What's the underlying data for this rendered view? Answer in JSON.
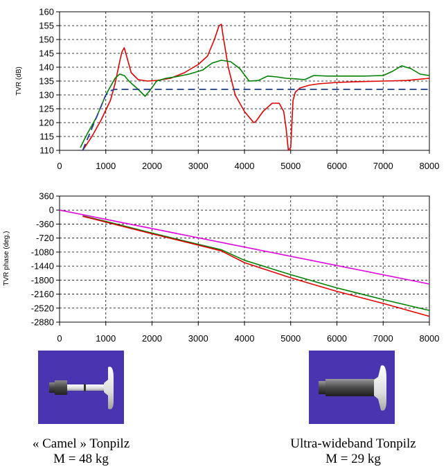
{
  "chart_data": [
    {
      "type": "line",
      "ylabel": "TVR (dB)",
      "xlim": [
        0,
        8000
      ],
      "ylim": [
        110,
        160
      ],
      "xticks": [
        0,
        1000,
        2000,
        3000,
        4000,
        5000,
        6000,
        7000,
        8000
      ],
      "xtick_labels": [
        "0",
        "1000",
        "2000",
        "3000",
        "4000",
        "5000",
        "6000",
        "7000",
        "8000"
      ],
      "yticks": [
        110,
        115,
        120,
        125,
        130,
        135,
        140,
        145,
        150,
        155,
        160
      ],
      "ytick_labels": [
        "110",
        "115",
        "120",
        "125",
        "130",
        "135",
        "140",
        "145",
        "150",
        "155",
        "160"
      ],
      "grid": true,
      "series": [
        {
          "color": "#e00000",
          "style": "solid",
          "x": [
            500,
            700,
            900,
            1100,
            1200,
            1300,
            1350,
            1400,
            1450,
            1550,
            1700,
            1900,
            2100,
            2400,
            2700,
            3000,
            3200,
            3350,
            3450,
            3500,
            3550,
            3650,
            3800,
            4000,
            4200,
            4250,
            4400,
            4600,
            4750,
            4850,
            4900,
            4950,
            5000,
            5050,
            5100,
            5200,
            5400,
            5600,
            6000,
            6500,
            7000,
            7500,
            8000
          ],
          "y": [
            110,
            115,
            121,
            128,
            134,
            142,
            145.5,
            147,
            144,
            138,
            135.5,
            135,
            135.2,
            136,
            138,
            141,
            144,
            150,
            155,
            155.5,
            150,
            140,
            130,
            124,
            120,
            120.5,
            124,
            127,
            127,
            124,
            118,
            110,
            111,
            128,
            131,
            132.5,
            133.5,
            134,
            134.5,
            134.8,
            135,
            135.2,
            136
          ]
        },
        {
          "color": "#008000",
          "style": "solid",
          "x": [
            450,
            600,
            800,
            1000,
            1200,
            1300,
            1400,
            1500,
            1700,
            1850,
            1950,
            2100,
            2300,
            2500,
            2800,
            3100,
            3300,
            3500,
            3700,
            3900,
            4100,
            4300,
            4500,
            4700,
            4900,
            5100,
            5300,
            5500,
            5800,
            6200,
            6600,
            7000,
            7200,
            7400,
            7600,
            7800,
            8000
          ],
          "y": [
            111,
            116,
            122,
            130,
            136,
            137.5,
            137,
            135,
            132,
            129.5,
            131.5,
            135,
            136,
            136.5,
            137.5,
            139,
            141.5,
            142.5,
            142,
            139.5,
            135,
            135.2,
            136.8,
            136.5,
            136,
            135.8,
            135.5,
            137,
            136.8,
            136.8,
            136.8,
            137,
            138.5,
            140.5,
            139.5,
            137.5,
            137
          ]
        },
        {
          "color": "#1f3c8f",
          "style": "dashed",
          "x": [
            500,
            1000,
            1100,
            1200,
            8000
          ],
          "y": [
            110,
            130,
            131.5,
            132,
            132
          ]
        }
      ]
    },
    {
      "type": "line",
      "ylabel": "TVR phase (deg.)",
      "xlim": [
        0,
        8000
      ],
      "ylim": [
        -2880,
        360
      ],
      "xticks": [
        0,
        1000,
        2000,
        3000,
        4000,
        5000,
        6000,
        7000,
        8000
      ],
      "xtick_labels": [
        "0",
        "1000",
        "2000",
        "3000",
        "4000",
        "5000",
        "6000",
        "7000",
        "8000"
      ],
      "yticks": [
        360,
        0,
        -360,
        -720,
        -1080,
        -1440,
        -1800,
        -2160,
        -2520,
        -2880
      ],
      "ytick_labels": [
        "360",
        "0",
        "-360",
        "-720",
        "-1080",
        "-1440",
        "-1800",
        "-2160",
        "-2520",
        "-2880"
      ],
      "grid": true,
      "series": [
        {
          "color": "#e000e0",
          "style": "solid",
          "x": [
            0,
            8000
          ],
          "y": [
            0,
            -1900
          ]
        },
        {
          "color": "#008000",
          "style": "solid",
          "x": [
            500,
            1000,
            2000,
            3000,
            3500,
            4000,
            5000,
            6000,
            7000,
            8000
          ],
          "y": [
            -150,
            -290,
            -590,
            -880,
            -1020,
            -1290,
            -1660,
            -2000,
            -2300,
            -2580
          ]
        },
        {
          "color": "#e00000",
          "style": "solid",
          "x": [
            500,
            1000,
            2000,
            3000,
            3500,
            4000,
            5000,
            6000,
            7000,
            8000
          ],
          "y": [
            -160,
            -310,
            -610,
            -900,
            -1050,
            -1350,
            -1740,
            -2090,
            -2400,
            -2730
          ]
        }
      ]
    }
  ],
  "transducers": [
    {
      "caption_line1": "« Camel » Tonpilz",
      "caption_line2": "M = 48 kg"
    },
    {
      "caption_line1": "Ultra-wideband Tonpilz",
      "caption_line2": "M = 29 kg"
    }
  ],
  "colors": {
    "panel_background": "#4a34b0"
  }
}
